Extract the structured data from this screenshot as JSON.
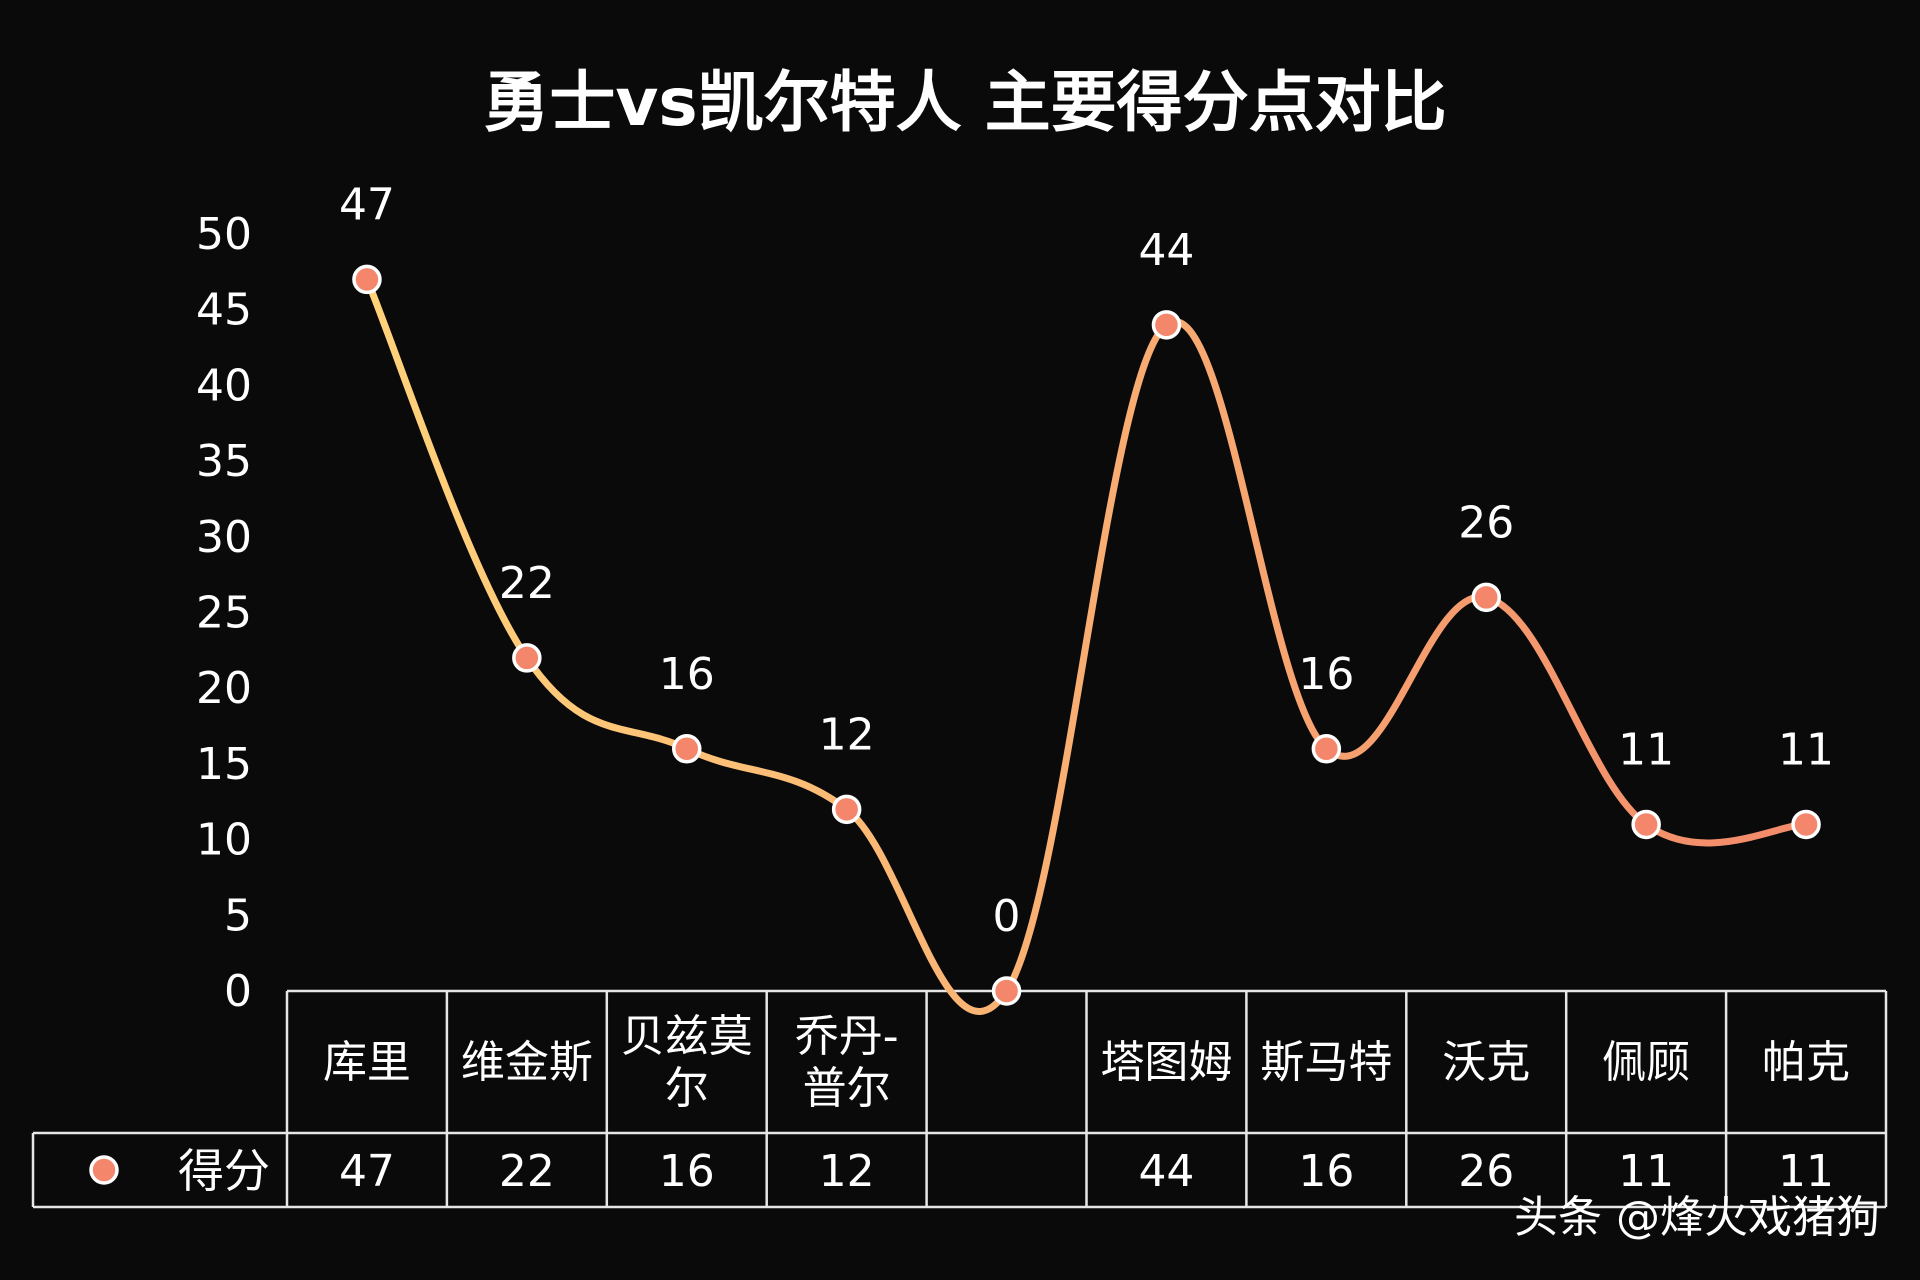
{
  "chart_data": {
    "type": "line",
    "title": "勇士vs凯尔特人 主要得分点对比",
    "categories": [
      [
        "库里"
      ],
      [
        "维金斯"
      ],
      [
        "贝兹莫",
        "尔"
      ],
      [
        "乔丹-",
        "普尔"
      ],
      [
        ""
      ],
      [
        "塔图姆"
      ],
      [
        "斯马特"
      ],
      [
        "沃克"
      ],
      [
        "佩顾"
      ],
      [
        "帕克"
      ]
    ],
    "series": [
      {
        "name": "得分",
        "values": [
          47,
          22,
          16,
          12,
          0,
          44,
          16,
          26,
          11,
          11
        ],
        "table_values": [
          "47",
          "22",
          "16",
          "12",
          "",
          "44",
          "16",
          "26",
          "11",
          "11"
        ],
        "data_labels": [
          "47",
          "22",
          "16",
          "12",
          "0",
          "44",
          "16",
          "26",
          "11",
          "11"
        ],
        "color_start": "#ffd27a",
        "color_end": "#f28a6a"
      }
    ],
    "ylim": [
      0,
      50
    ],
    "yticks": [
      "0",
      "5",
      "10",
      "15",
      "20",
      "25",
      "30",
      "35",
      "40",
      "45",
      "50"
    ],
    "smooth": true,
    "data_table": true,
    "gridlines": false
  },
  "watermark": "头条 @烽火戏猪狗",
  "colors": {
    "background": "#0a0a0a",
    "text": "#ffffff",
    "table_border": "#e6e6e6",
    "marker_fill": "#f4876b",
    "marker_stroke": "#ffffff"
  }
}
